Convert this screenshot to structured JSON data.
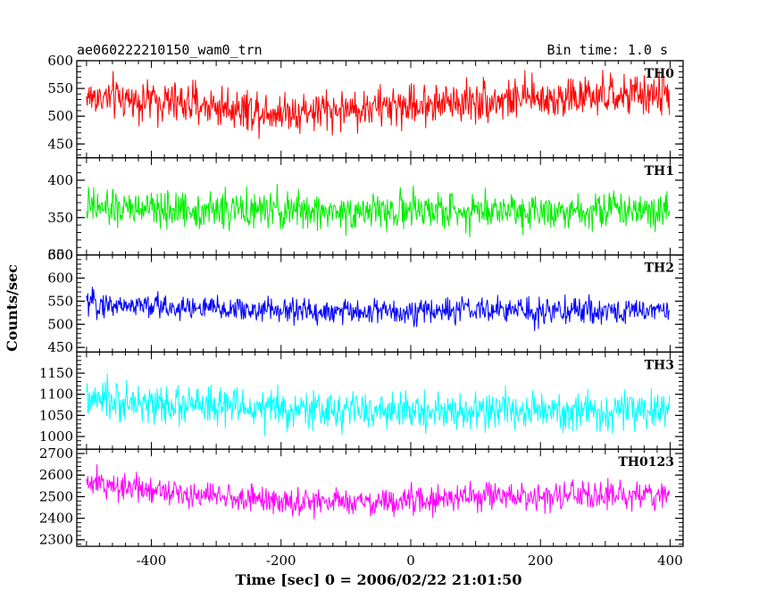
{
  "title_left": "ae060222210150_wam0_trn",
  "title_right": "Bin time: 1.0 s",
  "chart_data": {
    "type": "line",
    "xlabel": "Time [sec] 0 = 2006/02/22 21:01:50",
    "ylabel": "Counts/sec",
    "xlim": [
      -515,
      420
    ],
    "x_ticks": [
      -400,
      -200,
      0,
      200,
      400
    ],
    "x_data_range": [
      -500,
      399
    ],
    "bin_time_s": 1.0,
    "panels": [
      {
        "name": "TH0",
        "color": "#ff0000",
        "ylim": [
          425,
          600
        ],
        "y_ticks": [
          450,
          500,
          550,
          600
        ],
        "profile": [
          [
            -500,
            535
          ],
          [
            -400,
            528
          ],
          [
            -300,
            518
          ],
          [
            -200,
            508
          ],
          [
            -100,
            512
          ],
          [
            0,
            520
          ],
          [
            100,
            528
          ],
          [
            200,
            532
          ],
          [
            300,
            535
          ],
          [
            399,
            540
          ]
        ],
        "spread": 38
      },
      {
        "name": "TH1",
        "color": "#00ee00",
        "ylim": [
          300,
          430
        ],
        "y_ticks": [
          300,
          350,
          400
        ],
        "profile": [
          [
            -500,
            362
          ],
          [
            -300,
            360
          ],
          [
            -100,
            358
          ],
          [
            100,
            360
          ],
          [
            300,
            361
          ],
          [
            399,
            362
          ]
        ],
        "spread": 25
      },
      {
        "name": "TH2",
        "color": "#0000ff",
        "ylim": [
          440,
          650
        ],
        "y_ticks": [
          450,
          500,
          550,
          600,
          650
        ],
        "profile": [
          [
            -500,
            545
          ],
          [
            -300,
            533
          ],
          [
            -100,
            527
          ],
          [
            100,
            530
          ],
          [
            300,
            528
          ],
          [
            399,
            532
          ]
        ],
        "spread": 28
      },
      {
        "name": "TH3",
        "color": "#00ffff",
        "ylim": [
          970,
          1200
        ],
        "y_ticks": [
          1000,
          1050,
          1100,
          1150
        ],
        "profile": [
          [
            -500,
            1085
          ],
          [
            -300,
            1070
          ],
          [
            -100,
            1060
          ],
          [
            100,
            1060
          ],
          [
            300,
            1058
          ],
          [
            399,
            1060
          ]
        ],
        "spread": 45
      },
      {
        "name": "TH0123",
        "color": "#ff00ff",
        "ylim": [
          2270,
          2720
        ],
        "y_ticks": [
          2300,
          2400,
          2500,
          2600,
          2700
        ],
        "profile": [
          [
            -500,
            2560
          ],
          [
            -400,
            2540
          ],
          [
            -300,
            2500
          ],
          [
            -200,
            2480
          ],
          [
            -100,
            2470
          ],
          [
            0,
            2480
          ],
          [
            100,
            2500
          ],
          [
            200,
            2500
          ],
          [
            300,
            2505
          ],
          [
            399,
            2510
          ]
        ],
        "spread": 65
      }
    ]
  }
}
